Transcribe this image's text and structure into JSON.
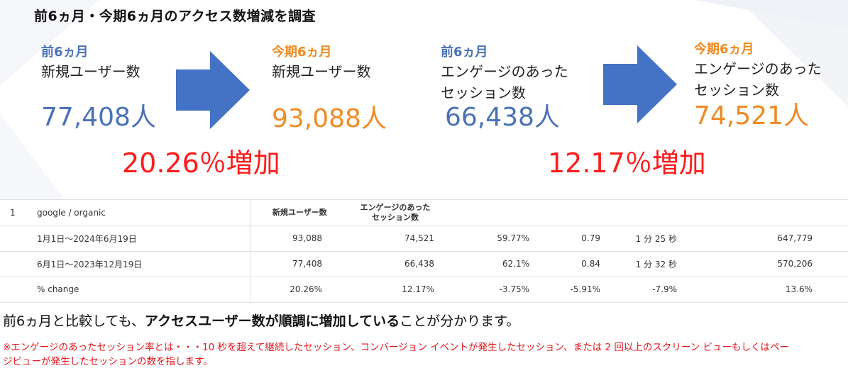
{
  "page_title": "前6ヵ月・今期6ヵ月のアクセス数増減を調査",
  "metrics": {
    "prev_users": {
      "period": "前6ヵ月",
      "label": "新規ユーザー数",
      "value": "77,408人"
    },
    "curr_users": {
      "period": "今期6ヵ月",
      "label": "新規ユーザー数",
      "value": "93,088人"
    },
    "prev_sessions": {
      "period": "前6ヵ月",
      "label_line1": "エンゲージのあった",
      "label_line2": "セッション数",
      "value": "66,438人"
    },
    "curr_sessions": {
      "period": "今期6ヵ月",
      "label_line1": "エンゲージのあった",
      "label_line2": "セッション数",
      "value": "74,521人"
    }
  },
  "increases": {
    "users": "20.26％増加",
    "sessions": "12.17％増加"
  },
  "colors": {
    "prev": "#4a72b8",
    "curr": "#f08a24",
    "increase": "#ff1a1a",
    "arrow": "#4472c4"
  },
  "table": {
    "header": {
      "index": "1",
      "source": "google / organic",
      "col_users": "新規ユーザー数",
      "col_sessions_line1": "エンゲージのあった",
      "col_sessions_line2": "セッション数"
    },
    "rows": [
      {
        "label": "1月1日～2024年6月19日",
        "c1": "93,088",
        "c2": "74,521",
        "c3": "59.77%",
        "c4": "0.79",
        "c5": "1 分 25 秒",
        "c6": "647,779"
      },
      {
        "label": "6月1日～2023年12月19日",
        "c1": "77,408",
        "c2": "66,438",
        "c3": "62.1%",
        "c4": "0.84",
        "c5": "1 分 32 秒",
        "c6": "570,206"
      },
      {
        "label": "% change",
        "c1": "20.26%",
        "c2": "12.17%",
        "c3": "-3.75%",
        "c4": "-5.91%",
        "c5": "-7.9%",
        "c6": "13.6%"
      }
    ]
  },
  "conclusion": {
    "part1": "前6ヵ月と比較しても、",
    "bold": "アクセスユーザー数が順調に増加している",
    "part2": "ことが分かります。"
  },
  "note": "※エンゲージのあったセッション率とは・・・10 秒を超えて継続したセッション、コンバージョン イベントが発生したセッション、または 2 回以上のスクリーン ビューもしくはページビューが発生したセッションの数を指します。"
}
